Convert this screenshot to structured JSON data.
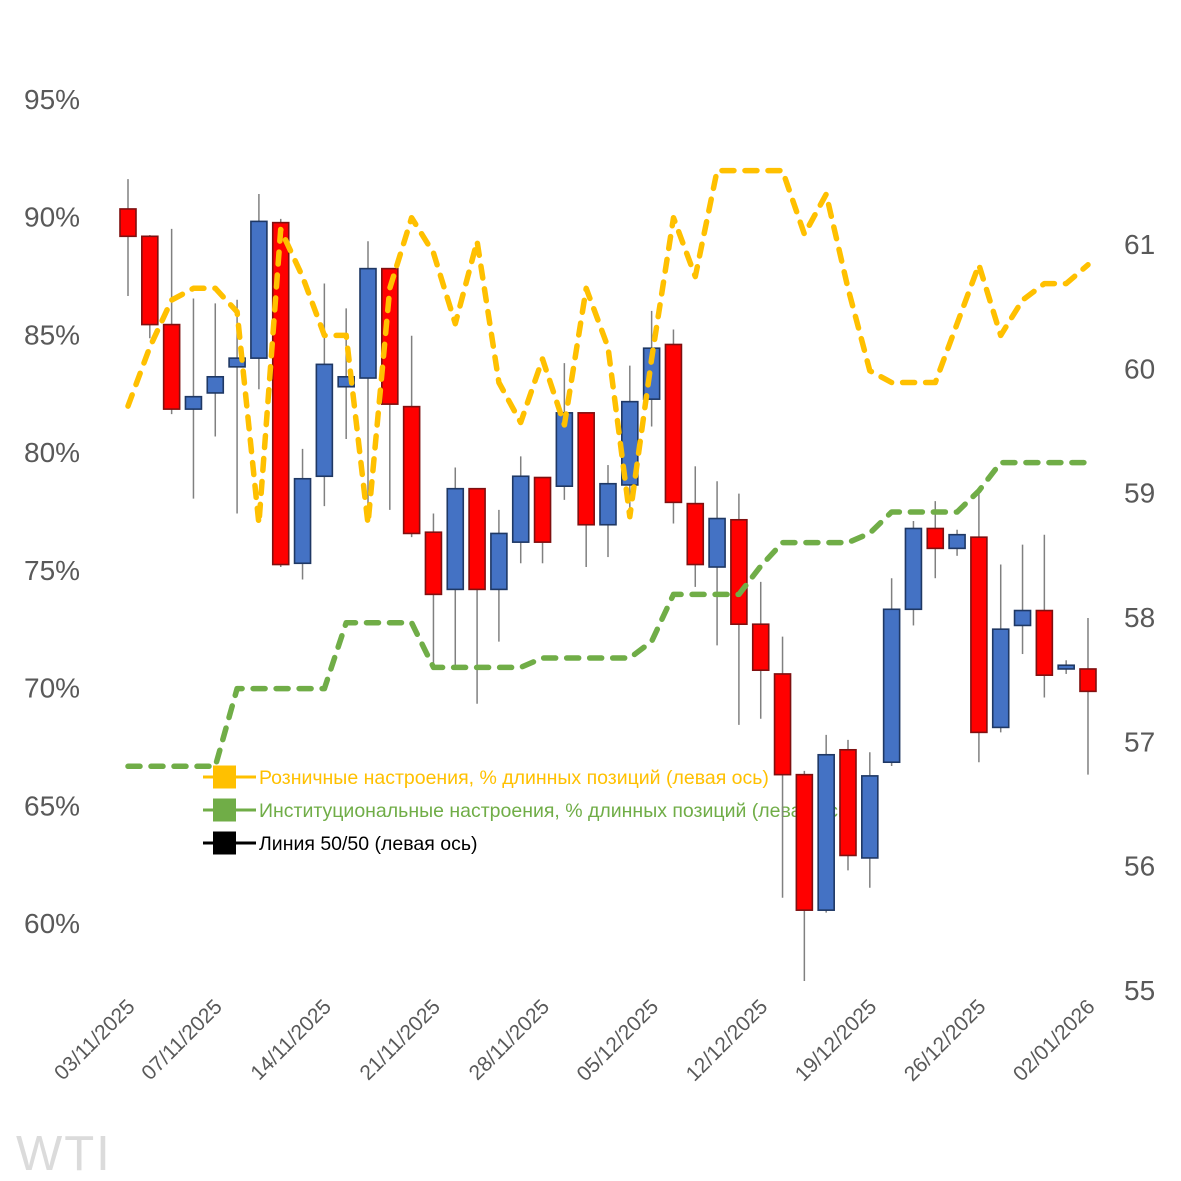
{
  "watermark": "WTI",
  "colors": {
    "background": "#FFFFFF",
    "up_candle_fill": "#4472C4",
    "up_candle_stroke": "#1F3864",
    "down_candle_fill": "#FF0000",
    "down_candle_stroke": "#7F1010",
    "wick": "#808080",
    "retail_line": "#FFC000",
    "institutional_line": "#70AD47",
    "fifty_fifty_line": "#000000",
    "axis_text": "#595959",
    "watermark_text": "#DBDBDB"
  },
  "legend": {
    "items": [
      {
        "label": "Розничные настроения, % длинных позиций (левая ось)",
        "color": "#FFC000"
      },
      {
        "label": "Институциональные настроения, % длинных позиций (левая ось)",
        "color": "#70AD47"
      },
      {
        "label": "Линия 50/50 (левая ось)",
        "color": "#000000"
      }
    ]
  },
  "axes": {
    "left": {
      "unit": "%",
      "tick_labels": [
        "95%",
        "90%",
        "85%",
        "80%",
        "75%",
        "70%",
        "65%",
        "60%"
      ],
      "tick_values": [
        95,
        90,
        85,
        80,
        75,
        70,
        65,
        60
      ]
    },
    "right": {
      "tick_labels": [
        "61",
        "60",
        "59",
        "58",
        "57",
        "56",
        "55"
      ],
      "tick_values": [
        61,
        60,
        59,
        58,
        57,
        56,
        55
      ]
    },
    "x": {
      "tick_labels": [
        "03/11/2025",
        "07/11/2025",
        "14/11/2025",
        "21/11/2025",
        "28/11/2025",
        "05/12/2025",
        "12/12/2025",
        "19/12/2025",
        "26/12/2025",
        "02/01/2026"
      ],
      "tick_indices": [
        0,
        4,
        9,
        14,
        19,
        24,
        29,
        34,
        39,
        44
      ]
    }
  },
  "chart_data": {
    "type": "candlestick_with_lines",
    "symbol": "WTI",
    "left_axis_range": [
      60,
      95
    ],
    "right_axis_range": [
      55,
      61
    ],
    "grid": false,
    "legend_position": "inside-left-middle",
    "dates": [
      "03/11/2025",
      "04/11/2025",
      "05/11/2025",
      "06/11/2025",
      "07/11/2025",
      "10/11/2025",
      "11/11/2025",
      "12/11/2025",
      "13/11/2025",
      "14/11/2025",
      "17/11/2025",
      "18/11/2025",
      "19/11/2025",
      "20/11/2025",
      "21/11/2025",
      "24/11/2025",
      "25/11/2025",
      "26/11/2025",
      "27/11/2025",
      "28/11/2025",
      "01/12/2025",
      "02/12/2025",
      "03/12/2025",
      "04/12/2025",
      "05/12/2025",
      "08/12/2025",
      "09/12/2025",
      "10/12/2025",
      "11/12/2025",
      "12/12/2025",
      "15/12/2025",
      "16/12/2025",
      "17/12/2025",
      "18/12/2025",
      "19/12/2025",
      "22/12/2025",
      "23/12/2025",
      "24/12/2025",
      "25/12/2025",
      "26/12/2025",
      "29/12/2025",
      "30/12/2025",
      "31/12/2025",
      "01/01/2026",
      "02/01/2026"
    ],
    "candles_right_axis": [
      {
        "d": "03/11/2025",
        "o": 61.29,
        "h": 61.53,
        "l": 60.59,
        "c": 61.07
      },
      {
        "d": "04/11/2025",
        "o": 61.07,
        "h": 61.08,
        "l": 60.25,
        "c": 60.36
      },
      {
        "d": "05/11/2025",
        "o": 60.36,
        "h": 61.13,
        "l": 59.64,
        "c": 59.68
      },
      {
        "d": "06/11/2025",
        "o": 59.68,
        "h": 60.57,
        "l": 58.96,
        "c": 59.78
      },
      {
        "d": "07/11/2025",
        "o": 59.81,
        "h": 60.53,
        "l": 59.46,
        "c": 59.94
      },
      {
        "d": "10/11/2025",
        "o": 60.02,
        "h": 60.56,
        "l": 58.84,
        "c": 60.09
      },
      {
        "d": "11/11/2025",
        "o": 60.09,
        "h": 61.41,
        "l": 59.84,
        "c": 61.19
      },
      {
        "d": "12/11/2025",
        "o": 61.18,
        "h": 61.21,
        "l": 58.41,
        "c": 58.43
      },
      {
        "d": "13/11/2025",
        "o": 58.44,
        "h": 59.36,
        "l": 58.31,
        "c": 59.12
      },
      {
        "d": "14/11/2025",
        "o": 59.14,
        "h": 60.69,
        "l": 58.9,
        "c": 60.04
      },
      {
        "d": "17/11/2025",
        "o": 59.86,
        "h": 60.49,
        "l": 59.44,
        "c": 59.94
      },
      {
        "d": "18/11/2025",
        "o": 59.93,
        "h": 61.03,
        "l": 58.88,
        "c": 60.81
      },
      {
        "d": "19/11/2025",
        "o": 60.81,
        "h": 60.81,
        "l": 58.87,
        "c": 59.72
      },
      {
        "d": "20/11/2025",
        "o": 59.7,
        "h": 60.27,
        "l": 58.65,
        "c": 58.68
      },
      {
        "d": "21/11/2025",
        "o": 58.69,
        "h": 58.84,
        "l": 57.59,
        "c": 58.19
      },
      {
        "d": "24/11/2025",
        "o": 58.23,
        "h": 59.21,
        "l": 57.61,
        "c": 59.04
      },
      {
        "d": "25/11/2025",
        "o": 59.04,
        "h": 59.04,
        "l": 57.31,
        "c": 58.23
      },
      {
        "d": "26/11/2025",
        "o": 58.23,
        "h": 58.87,
        "l": 57.81,
        "c": 58.68
      },
      {
        "d": "27/11/2025",
        "o": 58.61,
        "h": 59.3,
        "l": 58.44,
        "c": 59.14
      },
      {
        "d": "28/11/2025",
        "o": 59.13,
        "h": 59.13,
        "l": 58.44,
        "c": 58.61
      },
      {
        "d": "01/12/2025",
        "o": 59.06,
        "h": 60.05,
        "l": 58.95,
        "c": 59.65
      },
      {
        "d": "02/12/2025",
        "o": 59.65,
        "h": 59.65,
        "l": 58.41,
        "c": 58.75
      },
      {
        "d": "03/12/2025",
        "o": 58.75,
        "h": 59.23,
        "l": 58.49,
        "c": 59.08
      },
      {
        "d": "04/12/2025",
        "o": 59.07,
        "h": 60.03,
        "l": 58.88,
        "c": 59.74
      },
      {
        "d": "05/12/2025",
        "o": 59.76,
        "h": 60.47,
        "l": 59.54,
        "c": 60.17
      },
      {
        "d": "08/12/2025",
        "o": 60.2,
        "h": 60.32,
        "l": 58.76,
        "c": 58.93
      },
      {
        "d": "09/12/2025",
        "o": 58.92,
        "h": 59.22,
        "l": 58.25,
        "c": 58.43
      },
      {
        "d": "10/12/2025",
        "o": 58.41,
        "h": 59.1,
        "l": 57.78,
        "c": 58.8
      },
      {
        "d": "11/12/2025",
        "o": 58.79,
        "h": 59.0,
        "l": 57.14,
        "c": 57.95
      },
      {
        "d": "12/12/2025",
        "o": 57.95,
        "h": 58.29,
        "l": 57.19,
        "c": 57.58
      },
      {
        "d": "15/12/2025",
        "o": 57.55,
        "h": 57.85,
        "l": 55.75,
        "c": 56.74
      },
      {
        "d": "16/12/2025",
        "o": 56.74,
        "h": 56.77,
        "l": 55.08,
        "c": 55.65
      },
      {
        "d": "17/12/2025",
        "o": 55.65,
        "h": 57.06,
        "l": 55.63,
        "c": 56.9
      },
      {
        "d": "18/12/2025",
        "o": 56.94,
        "h": 57.02,
        "l": 55.97,
        "c": 56.09
      },
      {
        "d": "19/12/2025",
        "o": 56.07,
        "h": 56.92,
        "l": 55.83,
        "c": 56.73
      },
      {
        "d": "22/12/2025",
        "o": 56.84,
        "h": 58.32,
        "l": 56.81,
        "c": 58.07
      },
      {
        "d": "23/12/2025",
        "o": 58.07,
        "h": 58.78,
        "l": 57.94,
        "c": 58.72
      },
      {
        "d": "24/12/2025",
        "o": 58.72,
        "h": 58.94,
        "l": 58.32,
        "c": 58.56
      },
      {
        "d": "25/12/2025",
        "o": 58.56,
        "h": 58.71,
        "l": 58.5,
        "c": 58.67
      },
      {
        "d": "26/12/2025",
        "o": 58.65,
        "h": 59.0,
        "l": 56.84,
        "c": 57.08
      },
      {
        "d": "29/12/2025",
        "o": 57.12,
        "h": 58.43,
        "l": 57.08,
        "c": 57.91
      },
      {
        "d": "30/12/2025",
        "o": 57.94,
        "h": 58.59,
        "l": 57.71,
        "c": 58.06
      },
      {
        "d": "31/12/2025",
        "o": 58.06,
        "h": 58.67,
        "l": 57.36,
        "c": 57.54
      },
      {
        "d": "01/01/2026",
        "o": 57.59,
        "h": 57.66,
        "l": 57.55,
        "c": 57.62
      },
      {
        "d": "02/01/2026",
        "o": 57.59,
        "h": 58.0,
        "l": 56.74,
        "c": 57.41
      }
    ],
    "retail_sentiment_pct_left_axis": [
      82,
      84.5,
      86.5,
      87,
      87,
      86,
      77,
      89.5,
      87.5,
      85,
      85,
      77,
      87,
      90,
      88.5,
      85.5,
      89,
      83,
      81.3,
      84,
      81.2,
      87,
      84.5,
      77.3,
      84,
      90,
      87.5,
      92,
      92,
      92,
      92,
      89.3,
      91,
      87,
      83.5,
      83,
      83,
      83,
      85.5,
      88,
      85,
      86.5,
      87.2,
      87.2,
      88
    ],
    "institutional_sentiment_pct_left_axis": [
      66.7,
      66.7,
      66.7,
      66.7,
      66.7,
      70,
      70,
      70,
      70,
      70,
      72.8,
      72.8,
      72.8,
      72.8,
      70.9,
      70.9,
      70.9,
      70.9,
      70.9,
      71.3,
      71.3,
      71.3,
      71.3,
      71.3,
      72,
      74,
      74,
      74,
      74,
      75.2,
      76.2,
      76.2,
      76.2,
      76.2,
      76.6,
      77.5,
      77.5,
      77.5,
      77.5,
      78.4,
      79.6,
      79.6,
      79.6,
      79.6,
      79.6
    ],
    "fifty_fifty_level_pct": 50
  }
}
